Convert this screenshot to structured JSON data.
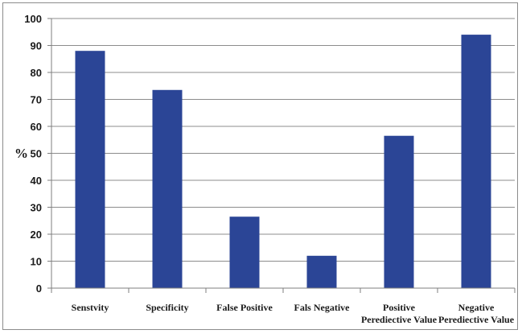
{
  "chart_data": {
    "type": "bar",
    "ylabel": "%",
    "ylim": [
      0,
      100
    ],
    "y_ticks": [
      0,
      10,
      20,
      30,
      40,
      50,
      60,
      70,
      80,
      90,
      100
    ],
    "grid": true,
    "categories": [
      [
        "Senstvity"
      ],
      [
        "Specificity"
      ],
      [
        "False Positive"
      ],
      [
        "Fals Negative"
      ],
      [
        "Positive",
        "Perediective Value"
      ],
      [
        "Negative",
        "Perediective Value"
      ]
    ],
    "values": [
      88,
      73.5,
      26.5,
      12,
      56.5,
      94
    ],
    "colors": {
      "bar": "#2b4596",
      "grid": "#8c8c8c",
      "axis": "#7f7f7f"
    }
  }
}
